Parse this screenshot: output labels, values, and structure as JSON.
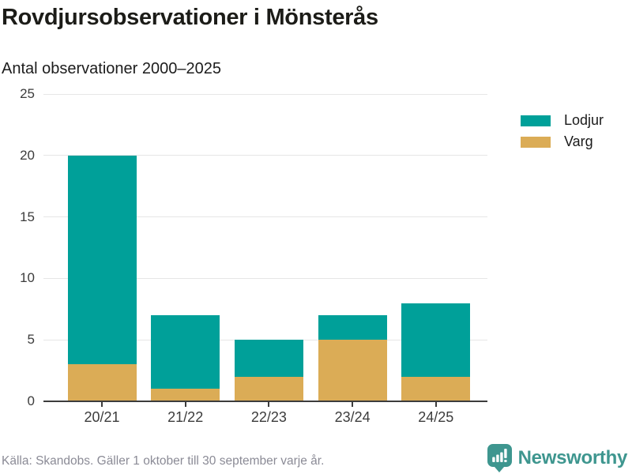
{
  "chart_data": {
    "type": "bar",
    "stacked": true,
    "title": "Rovdjursobservationer i Mönsterås",
    "subtitle": "Antal observationer 2000–2025",
    "categories": [
      "20/21",
      "21/22",
      "22/23",
      "23/24",
      "24/25"
    ],
    "series": [
      {
        "name": "Varg",
        "color": "#DBAC56",
        "values": [
          3,
          1,
          2,
          5,
          2
        ]
      },
      {
        "name": "Lodjur",
        "color": "#00A099",
        "values": [
          17,
          6,
          3,
          2,
          6
        ]
      }
    ],
    "totals": [
      20,
      7,
      5,
      7,
      8
    ],
    "xlabel": "",
    "ylabel": "",
    "ylim": [
      0,
      25
    ],
    "yticks": [
      0,
      5,
      10,
      15,
      20,
      25
    ],
    "grid": true,
    "legend": {
      "position": "top-right",
      "entries": [
        {
          "label": "Lodjur",
          "color": "#00A099"
        },
        {
          "label": "Varg",
          "color": "#DBAC56"
        }
      ]
    },
    "source": "Källa: Skandobs. Gäller 1 oktober till 30 september varje år."
  },
  "branding": {
    "name": "Newsworthy",
    "color": "#3E968F"
  }
}
